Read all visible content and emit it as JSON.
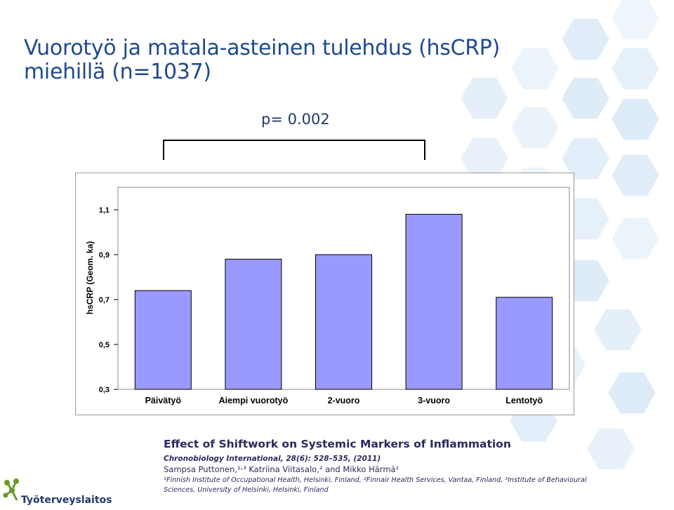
{
  "slide": {
    "title_line1": "Vuorotyö ja matala-asteinen tulehdus (hsCRP)",
    "title_line2": "miehillä (n=1037)",
    "p_value": "p= 0.002"
  },
  "colors": {
    "bar_fill": "#9999ff",
    "title": "#1f4a8c",
    "hex_decoration": "#cfe3f5"
  },
  "chart_data": {
    "type": "bar",
    "categories": [
      "Päivätyö",
      "Aiempi vuorotyö",
      "2-vuoro",
      "3-vuoro",
      "Lentotyö"
    ],
    "values": [
      0.74,
      0.88,
      0.9,
      1.08,
      0.71
    ],
    "ylabel": "hsCRP (Geom. ka)",
    "ylim": [
      0.3,
      1.2
    ],
    "yticks": [
      "0,3",
      "0,5",
      "0,7",
      "0,9",
      "1,1"
    ],
    "ytick_values": [
      0.3,
      0.5,
      0.7,
      0.9,
      1.1
    ],
    "grid": false,
    "legend": "none"
  },
  "citation": {
    "title": "Effect of Shiftwork on Systemic Markers of Inflammation",
    "journal": "Chronobiology International, 28(6): 528–535, (2011)",
    "authors": "Sampsa Puttonen,¹˒³ Katriina Viitasalo,² and Mikko Härmä¹",
    "affiliation_line1": "¹Finnish Institute of Occupational Health, Helsinki, Finland, ²Finnair Health Services, Vantaa, Finland, ³Institute of Behavioural",
    "affiliation_line2": "Sciences, University of Helsinki, Helsinki, Finland"
  },
  "logo": {
    "text": "Työterveyslaitos",
    "icon": "people-network-logo-icon"
  }
}
